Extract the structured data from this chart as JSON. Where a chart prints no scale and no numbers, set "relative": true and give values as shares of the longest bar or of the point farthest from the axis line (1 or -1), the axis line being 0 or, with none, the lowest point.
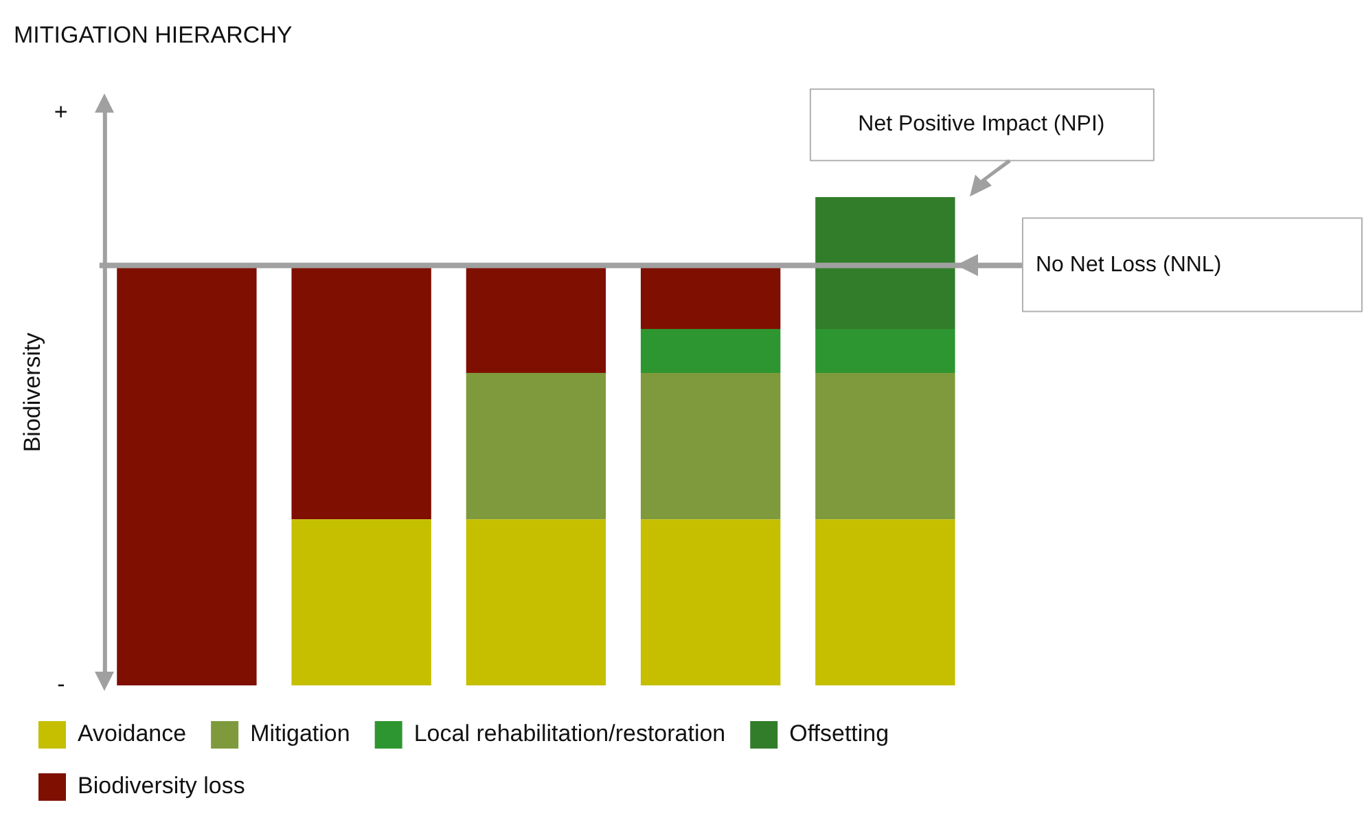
{
  "chart_data": {
    "type": "bar",
    "title": "MITIGATION HIERARCHY",
    "ylabel": "Biodiversity",
    "stacked": true,
    "relative": true,
    "legend": "bottom",
    "categories": [
      null,
      null,
      null,
      null,
      null
    ],
    "series": [
      {
        "name": "Avoidance",
        "color": "#c5bf00",
        "values": [
          0,
          0.34,
          0.34,
          0.34,
          0.34
        ]
      },
      {
        "name": "Mitigation",
        "color": "#7f9a3c",
        "values": [
          0,
          0,
          0.3,
          0.3,
          0.3
        ]
      },
      {
        "name": "Local rehabilitation/restoration",
        "color": "#2e9630",
        "values": [
          0,
          0,
          0,
          0.09,
          0.09
        ]
      },
      {
        "name": "Offsetting",
        "color": "#327d2a",
        "values": [
          0,
          0,
          0,
          0,
          0.27
        ]
      },
      {
        "name": "Biodiversity loss",
        "color": "#7f0f00",
        "values": [
          0.86,
          0.52,
          0.22,
          0.13,
          0
        ]
      }
    ],
    "ref_lines": [
      {
        "axis": "y",
        "value": 0.86,
        "label": "No Net Loss (NNL)",
        "color": "#a0a0a0"
      }
    ],
    "annotations": [
      "+",
      "-",
      "Net Positive Impact (NPI)"
    ]
  }
}
